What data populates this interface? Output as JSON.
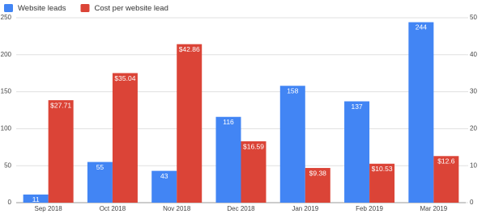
{
  "chart_data": {
    "type": "bar",
    "categories": [
      "Sep 2018",
      "Oct 2018",
      "Nov 2018",
      "Dec 2018",
      "Jan 2019",
      "Feb 2019",
      "Mar 2019"
    ],
    "series": [
      {
        "name": "Website leads",
        "color": "#4285f4",
        "values": [
          11,
          55,
          43,
          116,
          158,
          137,
          244
        ]
      },
      {
        "name": "Cost per website lead",
        "color": "#db4437",
        "axis": "y2",
        "values": [
          27.71,
          35.04,
          42.86,
          16.59,
          9.38,
          10.53,
          12.6
        ],
        "value_labels": [
          "$27.71",
          "$35.04",
          "$42.86",
          "$16.59",
          "$9.38",
          "$10.53",
          "$12.6"
        ]
      }
    ],
    "ylim": [
      0,
      250
    ],
    "yticks": [
      0,
      50,
      100,
      150,
      200,
      250
    ],
    "y2lim": [
      0,
      50
    ],
    "y2ticks": [
      0,
      10,
      20,
      30,
      40,
      50
    ],
    "grid": true
  }
}
